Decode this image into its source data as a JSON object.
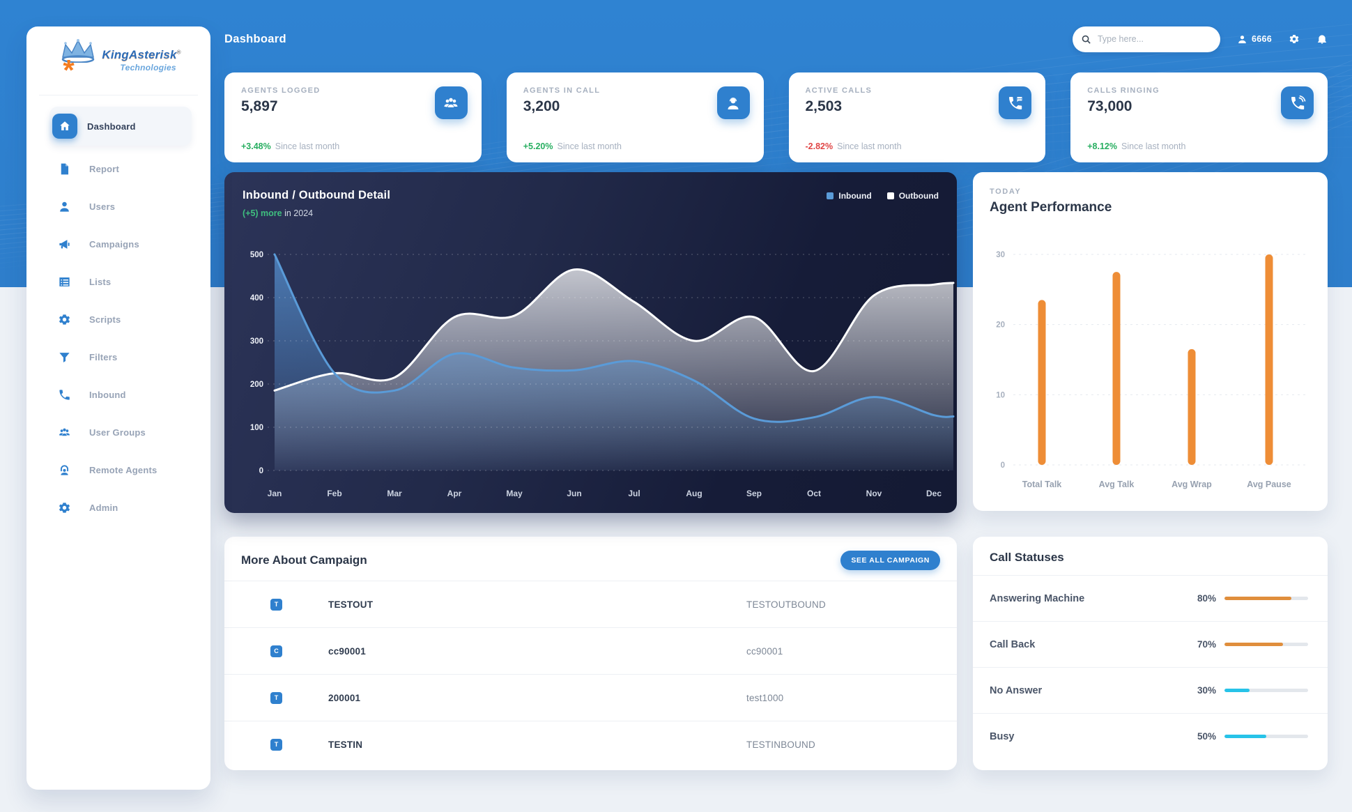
{
  "brand": {
    "name": "KingAsterisk",
    "reg": "®",
    "tagline": "Technologies"
  },
  "header": {
    "page_title": "Dashboard",
    "search_placeholder": "Type here...",
    "user_id": "6666"
  },
  "sidebar": {
    "items": [
      {
        "label": "Dashboard",
        "icon": "home",
        "active": true
      },
      {
        "label": "Report",
        "icon": "report",
        "active": false
      },
      {
        "label": "Users",
        "icon": "user",
        "active": false
      },
      {
        "label": "Campaigns",
        "icon": "megaphone",
        "active": false
      },
      {
        "label": "Lists",
        "icon": "list",
        "active": false
      },
      {
        "label": "Scripts",
        "icon": "gear",
        "active": false
      },
      {
        "label": "Filters",
        "icon": "filter",
        "active": false
      },
      {
        "label": "Inbound",
        "icon": "phone",
        "active": false
      },
      {
        "label": "User Groups",
        "icon": "group",
        "active": false
      },
      {
        "label": "Remote Agents",
        "icon": "headset",
        "active": false
      },
      {
        "label": "Admin",
        "icon": "gear",
        "active": false
      }
    ]
  },
  "stat_cards": [
    {
      "label": "AGENTS LOGGED",
      "value": "5,897",
      "delta": "+3.48%",
      "delta_color": "#27ae60",
      "caption": "Since last month",
      "icon": "group"
    },
    {
      "label": "AGENTS IN CALL",
      "value": "3,200",
      "delta": "+5.20%",
      "delta_color": "#27ae60",
      "caption": "Since last month",
      "icon": "agent-headset"
    },
    {
      "label": "ACTIVE CALLS",
      "value": "2,503",
      "delta": "-2.82%",
      "delta_color": "#e04545",
      "caption": "Since last month",
      "icon": "phone-chat"
    },
    {
      "label": "CALLS RINGING",
      "value": "73,000",
      "delta": "+8.12%",
      "delta_color": "#27ae60",
      "caption": "Since last month",
      "icon": "phone-ring"
    }
  ],
  "chart_data": [
    {
      "type": "area",
      "title": "Inbound / Outbound Detail",
      "subtitle_highlight": "(+5) more",
      "subtitle_rest": "in 2024",
      "x": [
        "Jan",
        "Feb",
        "Mar",
        "Apr",
        "May",
        "Jun",
        "Jul",
        "Aug",
        "Sep",
        "Oct",
        "Nov",
        "Dec"
      ],
      "series": [
        {
          "name": "Outbound",
          "color": "#ffffff",
          "values": [
            185,
            225,
            215,
            355,
            358,
            465,
            390,
            300,
            355,
            230,
            405,
            430
          ]
        },
        {
          "name": "Inbound",
          "color": "#5a9bd8",
          "values": [
            500,
            225,
            185,
            270,
            238,
            232,
            253,
            208,
            120,
            123,
            170,
            128
          ]
        }
      ],
      "ylim": [
        0,
        500
      ],
      "yticks": [
        0,
        100,
        200,
        300,
        400,
        500
      ],
      "grid": true,
      "legend_position": "top-right"
    },
    {
      "type": "bar",
      "eyebrow": "TODAY",
      "title": "Agent Performance",
      "categories": [
        "Total Talk",
        "Avg Talk",
        "Avg Wrap",
        "Avg Pause"
      ],
      "values": [
        23.5,
        27.5,
        16.5,
        30
      ],
      "bar_color": "#ee8d36",
      "ylim": [
        0,
        30
      ],
      "yticks": [
        0,
        10,
        20,
        30
      ],
      "grid": true
    }
  ],
  "campaigns": {
    "title": "More About Campaign",
    "button_label": "SEE ALL CAMPAIGN",
    "rows": [
      {
        "badge": "T",
        "name": "TESTOUT",
        "detail": "TESTOUTBOUND"
      },
      {
        "badge": "C",
        "name": "cc90001",
        "detail": "cc90001"
      },
      {
        "badge": "T",
        "name": "200001",
        "detail": "test1000"
      },
      {
        "badge": "T",
        "name": "TESTIN",
        "detail": "TESTINBOUND"
      }
    ]
  },
  "call_statuses": {
    "title": "Call Statuses",
    "rows": [
      {
        "label": "Answering Machine",
        "percent": 80,
        "color": "#e08e3c"
      },
      {
        "label": "Call Back",
        "percent": 70,
        "color": "#e08e3c"
      },
      {
        "label": "No Answer",
        "percent": 30,
        "color": "#27c3e8"
      },
      {
        "label": "Busy",
        "percent": 50,
        "color": "#27c3e8"
      }
    ]
  }
}
